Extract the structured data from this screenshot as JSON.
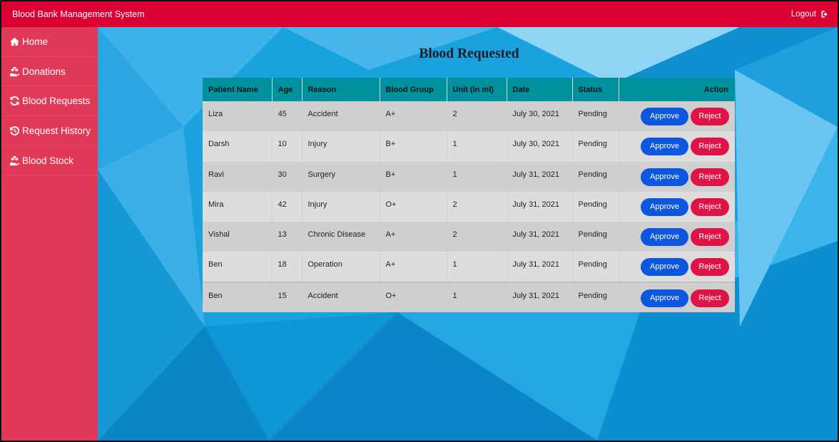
{
  "app": {
    "title": "Blood Bank Management System",
    "logout_label": "Logout"
  },
  "sidebar": {
    "items": [
      {
        "label": "Home",
        "icon": "home-icon"
      },
      {
        "label": "Donations",
        "icon": "hand-holding-icon"
      },
      {
        "label": "Blood Requests",
        "icon": "sync-icon"
      },
      {
        "label": "Request History",
        "icon": "history-icon"
      },
      {
        "label": "Blood Stock",
        "icon": "hand-holding-icon"
      }
    ]
  },
  "main": {
    "title": "Blood Requested",
    "columns": [
      "Patient Name",
      "Age",
      "Reason",
      "Blood Group",
      "Unit (in ml)",
      "Date",
      "Status",
      "Action"
    ],
    "approve_label": "Approve",
    "reject_label": "Reject",
    "rows": [
      {
        "name": "Liza",
        "age": "45",
        "reason": "Accident",
        "group": "A+",
        "unit": "2",
        "date": "July 30, 2021",
        "status": "Pending"
      },
      {
        "name": "Darsh",
        "age": "10",
        "reason": "Injury",
        "group": "B+",
        "unit": "1",
        "date": "July 30, 2021",
        "status": "Pending"
      },
      {
        "name": "Ravi",
        "age": "30",
        "reason": "Surgery",
        "group": "B+",
        "unit": "1",
        "date": "July 31, 2021",
        "status": "Pending"
      },
      {
        "name": "Mira",
        "age": "42",
        "reason": "Injury",
        "group": "O+",
        "unit": "2",
        "date": "July 31, 2021",
        "status": "Pending"
      },
      {
        "name": "Vishal",
        "age": "13",
        "reason": "Chronic Disease",
        "group": "A+",
        "unit": "2",
        "date": "July 31, 2021",
        "status": "Pending"
      },
      {
        "name": "Ben",
        "age": "18",
        "reason": "Operation",
        "group": "A+",
        "unit": "1",
        "date": "July 31, 2021",
        "status": "Pending"
      },
      {
        "name": "Ben",
        "age": "15",
        "reason": "Accident",
        "group": "O+",
        "unit": "1",
        "date": "July 31, 2021",
        "status": "Pending"
      }
    ]
  },
  "colors": {
    "topbar": "#dc0033",
    "sidebar": "#e13a58",
    "background": "#16a3e0",
    "table_header": "#00919e",
    "approve": "#0d57e0",
    "reject": "#de1446"
  }
}
